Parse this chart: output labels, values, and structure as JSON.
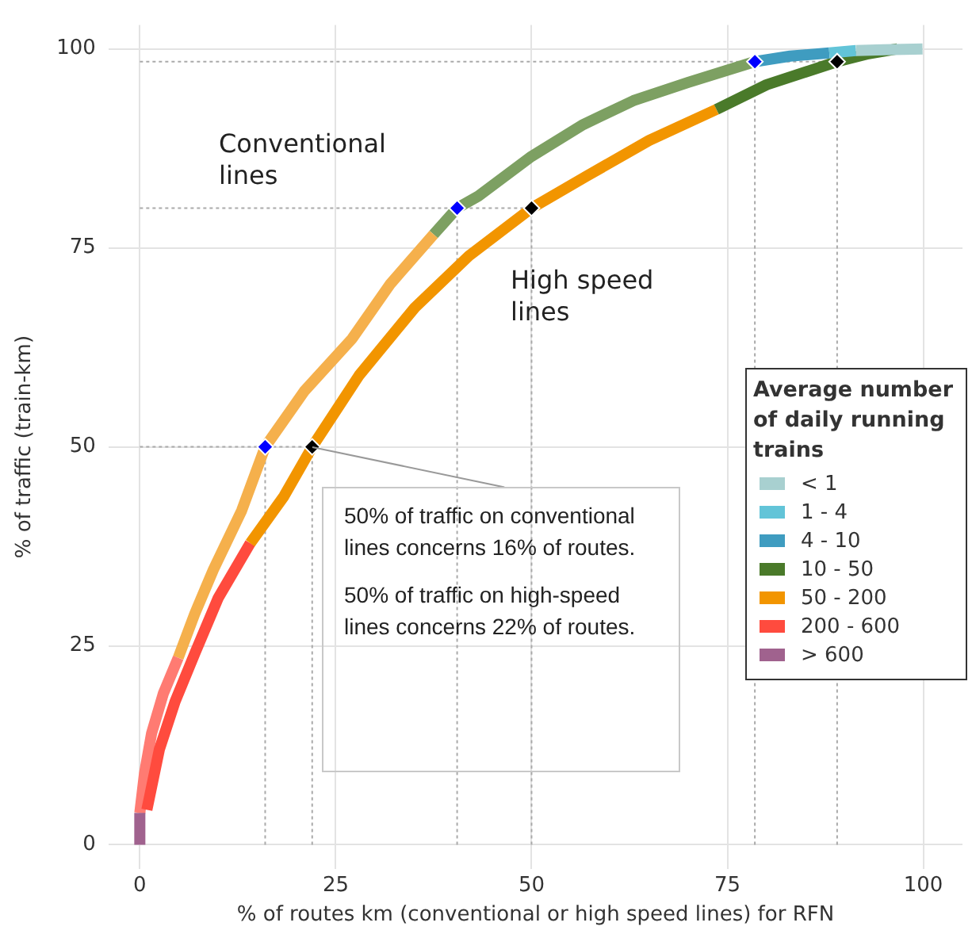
{
  "chart_data": {
    "type": "line",
    "xlabel": "% of routes km (conventional or high speed lines) for RFN",
    "ylabel": "% of traffic (train-km)",
    "legend_title": "Average number of daily running trains",
    "legend": "right",
    "grid": true,
    "line_style": "solid",
    "xlim": [
      -4,
      105
    ],
    "ylim": [
      -3,
      103
    ],
    "xticks": [
      0,
      25,
      50,
      75,
      100
    ],
    "yticks": [
      0,
      25,
      50,
      75,
      100
    ],
    "series": [
      {
        "name": "< 1",
        "color": "#a8d0d0",
        "x": [
          91.4,
          95,
          99.9
        ],
        "values": [
          99.8,
          99.9,
          100
        ]
      },
      {
        "name": "1 - 4",
        "color": "#62c4d8",
        "x": [
          88,
          91.4
        ],
        "values": [
          99.5,
          99.8
        ]
      },
      {
        "name": "4 - 10",
        "color": "#3f9cc0",
        "x": [
          78.5,
          83,
          88
        ],
        "values": [
          98.4,
          99.1,
          99.5
        ]
      },
      {
        "name": "10 - 50",
        "color": "#4a7a2a",
        "x": [
          73.6,
          80,
          89,
          93,
          96.7
        ],
        "values": [
          92.4,
          95.5,
          98.4,
          99.4,
          100
        ]
      },
      {
        "name": "50 - 200",
        "color": "#f29500",
        "x": [
          14.1,
          18.4,
          22,
          28,
          35.1,
          42,
          50,
          57,
          65,
          73.6
        ],
        "values": [
          37.9,
          43.8,
          50,
          59,
          67.5,
          74,
          80,
          84,
          88.5,
          92.4
        ]
      },
      {
        "name": "200 - 600",
        "color": "#ff4b3e",
        "x": [
          0.9,
          2.5,
          4.5,
          7,
          10,
          14.1
        ],
        "values": [
          4.4,
          12,
          18,
          24,
          31,
          37.9
        ]
      },
      {
        "name": "> 600",
        "color": "#a0628e",
        "x": [
          0,
          0
        ],
        "values": [
          0,
          4
        ]
      },
      {
        "color": "#ff7b72",
        "x": [
          0,
          0.6,
          1.5,
          3,
          4.9
        ],
        "values": [
          4,
          9,
          14,
          19,
          23.5
        ]
      },
      {
        "color": "#f5b04c",
        "x": [
          4.9,
          7,
          9.4,
          13,
          16,
          21,
          27.1,
          32,
          37.5
        ],
        "values": [
          23.5,
          29,
          34.6,
          42,
          50,
          57,
          63.6,
          70.5,
          76.7
        ]
      },
      {
        "color": "#7da062",
        "x": [
          37.5,
          40.5,
          43.2,
          50,
          56.6,
          63,
          70,
          78.5
        ],
        "values": [
          76.7,
          80,
          81.5,
          86.5,
          90.5,
          93.5,
          95.8,
          98.4
        ]
      },
      {
        "color": "#0000ff",
        "type": "scatter",
        "marker": "diamond",
        "x": [
          16,
          40.5,
          78.5
        ],
        "values": [
          50,
          80,
          98.4
        ]
      },
      {
        "color": "#000000",
        "type": "scatter",
        "marker": "diamond",
        "x": [
          22,
          50,
          89
        ],
        "values": [
          50,
          80,
          98.4
        ]
      }
    ],
    "ref_lines": [
      {
        "axis": "y",
        "value": 50,
        "line_style": "dotted",
        "color": "#aaaaaa"
      },
      {
        "axis": "y",
        "value": 80,
        "line_style": "dotted",
        "color": "#aaaaaa"
      },
      {
        "axis": "y",
        "value": 98.4,
        "line_style": "dotted",
        "color": "#aaaaaa"
      },
      {
        "axis": "x",
        "value": 16,
        "line_style": "dotted",
        "color": "#aaaaaa"
      },
      {
        "axis": "x",
        "value": 22,
        "line_style": "dotted",
        "color": "#aaaaaa"
      },
      {
        "axis": "x",
        "value": 40.5,
        "line_style": "dotted",
        "color": "#aaaaaa"
      },
      {
        "axis": "x",
        "value": 50,
        "line_style": "dotted",
        "color": "#aaaaaa"
      },
      {
        "axis": "x",
        "value": 78.5,
        "line_style": "dotted",
        "color": "#aaaaaa"
      },
      {
        "axis": "x",
        "value": 89,
        "line_style": "dotted",
        "color": "#aaaaaa"
      }
    ],
    "annotations": [
      "Conventional lines",
      "High speed lines",
      {
        "text": "50% of traffic on conventional lines concerns 16% of routes.",
        "x": 22,
        "y": 50
      },
      "50% of traffic on high-speed lines concerns 22% of routes."
    ]
  }
}
